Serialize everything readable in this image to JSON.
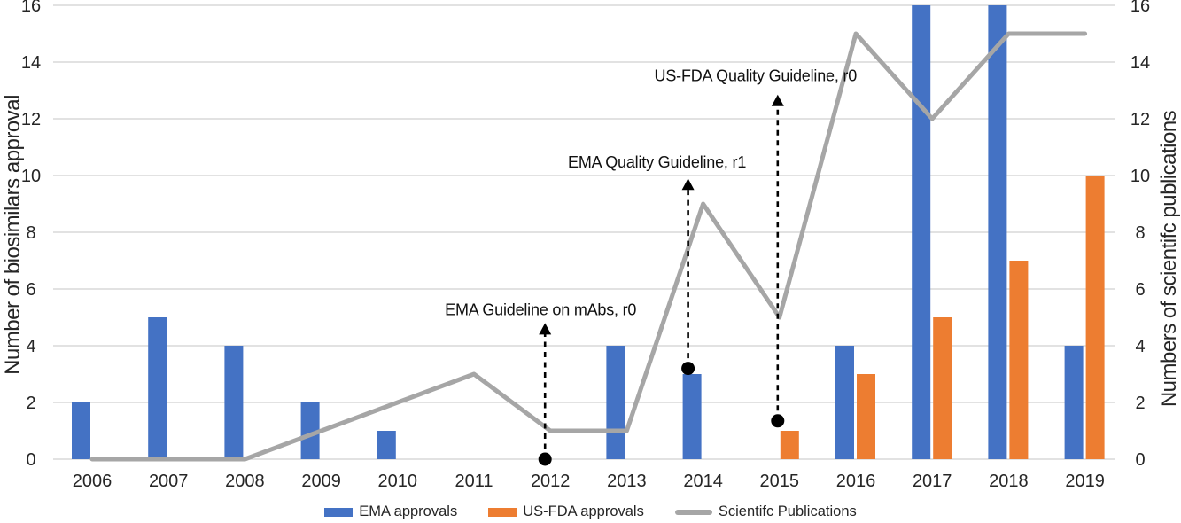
{
  "chart_data": {
    "type": "combo-bar-line",
    "categories": [
      "2006",
      "2007",
      "2008",
      "2009",
      "2010",
      "2011",
      "2012",
      "2013",
      "2014",
      "2015",
      "2016",
      "2017",
      "2018",
      "2019"
    ],
    "series": [
      {
        "name": "EMA approvals",
        "type": "bar",
        "color": "#4472C4",
        "values": [
          2,
          5,
          4,
          2,
          1,
          0,
          0,
          4,
          3,
          0,
          4,
          16,
          16,
          4
        ]
      },
      {
        "name": "US-FDA approvals",
        "type": "bar",
        "color": "#ED7D31",
        "values": [
          0,
          0,
          0,
          0,
          0,
          0,
          0,
          0,
          0,
          1,
          3,
          5,
          7,
          10
        ]
      },
      {
        "name": "Scientifc Publications",
        "type": "line",
        "color": "#A6A6A6",
        "values": [
          0,
          0,
          0,
          1,
          2,
          3,
          1,
          1,
          9,
          5,
          15,
          12,
          15,
          15
        ]
      }
    ],
    "left_axis": {
      "label": "Number of biosimilars approval",
      "min": 0,
      "max": 16,
      "step": 2
    },
    "right_axis": {
      "label": "Numbers of scientifc publications",
      "min": 0,
      "max": 16,
      "step": 2
    },
    "grid": true,
    "legend_position": "bottom",
    "annotations": [
      {
        "label": "EMA Guideline on mAbs, r0",
        "year": "2012",
        "dot_value": 0,
        "tip_value": 4.8,
        "text_value": 5.3,
        "dx": -6,
        "text_dx": -11
      },
      {
        "label": "EMA Quality Guideline, r1",
        "year": "2014",
        "dot_value": 3.2,
        "tip_value": 9.9,
        "text_value": 10.5,
        "dx": -17,
        "text_dx": -52
      },
      {
        "label": "US-FDA Quality Guideline, r0",
        "year": "2015",
        "dot_value": 1.35,
        "tip_value": 12.85,
        "text_value": 13.55,
        "dx": -2,
        "text_dx": -27
      }
    ],
    "colors": {
      "grid": "#D9D9D9",
      "text": "#262626",
      "annotation": "#000000"
    }
  }
}
